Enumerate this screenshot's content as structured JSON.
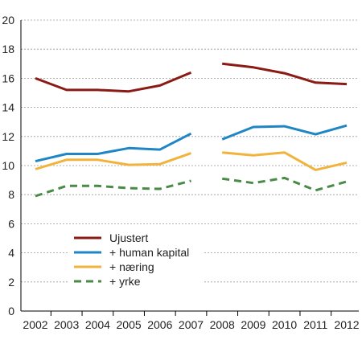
{
  "chart_data": {
    "type": "line",
    "title": "",
    "xlabel": "",
    "ylabel": "",
    "categories": [
      "2002",
      "2003",
      "2004",
      "2005",
      "2006",
      "2007",
      "2008",
      "2009",
      "2010",
      "2011",
      "2012"
    ],
    "ylim": [
      0,
      20
    ],
    "yticks": [
      0,
      2,
      4,
      6,
      8,
      10,
      12,
      14,
      16,
      18,
      20
    ],
    "grid": "horizontal dashed",
    "break_between": [
      "2007",
      "2008"
    ],
    "legend_position": "bottom-left inside plot",
    "series": [
      {
        "name": "Ujustert",
        "color": "#8B1A14",
        "dash": "solid",
        "values": [
          16.0,
          15.2,
          15.2,
          15.1,
          15.5,
          16.4,
          17.0,
          16.75,
          16.35,
          15.7,
          15.6
        ]
      },
      {
        "name": "+ human kapital",
        "color": "#1F86C6",
        "dash": "solid",
        "values": [
          10.3,
          10.8,
          10.8,
          11.2,
          11.1,
          12.2,
          11.8,
          12.65,
          12.7,
          12.15,
          12.75
        ]
      },
      {
        "name": "+ næring",
        "color": "#F2B33D",
        "dash": "solid",
        "values": [
          9.75,
          10.4,
          10.4,
          10.05,
          10.1,
          10.85,
          10.9,
          10.7,
          10.9,
          9.7,
          10.2
        ]
      },
      {
        "name": "+ yrke",
        "color": "#4A8A47",
        "dash": "dashed",
        "values": [
          7.9,
          8.6,
          8.6,
          8.45,
          8.4,
          8.95,
          9.1,
          8.8,
          9.15,
          8.3,
          8.9
        ]
      }
    ]
  }
}
